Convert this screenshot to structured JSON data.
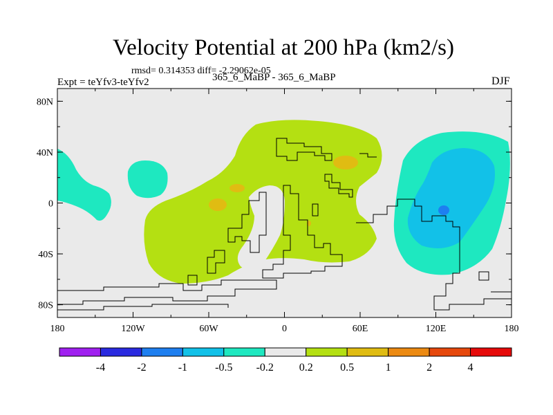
{
  "chart_data": {
    "type": "heatmap",
    "title": "Velocity Potential at 200 hPa (km2/s)",
    "stats_text": "rmsd= 0.314353 diff= -2.29062e-05",
    "left_label": "Expt = teYfv3-teYfv2",
    "center_label": "365_6_MaBP - 365_6_MaBP",
    "right_label": "DJF",
    "x_ticks": [
      "180",
      "120W",
      "60W",
      "0",
      "60E",
      "120E",
      "180"
    ],
    "y_ticks": [
      "80N",
      "40N",
      "0",
      "40S",
      "80S"
    ],
    "colorbar_labels": [
      "-4",
      "-2",
      "-1",
      "-0.5",
      "-0.2",
      "0.2",
      "0.5",
      "1",
      "2",
      "4"
    ],
    "colorbar_colors": [
      "#a020f0",
      "#2a2ae0",
      "#1e7ff0",
      "#12c1e8",
      "#1ee8c0",
      "#eaeaea",
      "#b4e012",
      "#e0bc12",
      "#ec8a12",
      "#e6480c",
      "#e60a0a"
    ],
    "regions": [
      {
        "name": "positive-02-05",
        "color": "#b4e012"
      },
      {
        "name": "positive-05-1",
        "color": "#e0bc12"
      },
      {
        "name": "negative-02-05",
        "color": "#1ee8c0"
      },
      {
        "name": "negative-05-1",
        "color": "#12c1e8"
      },
      {
        "name": "negative-1-2",
        "color": "#1e7ff0"
      }
    ]
  }
}
